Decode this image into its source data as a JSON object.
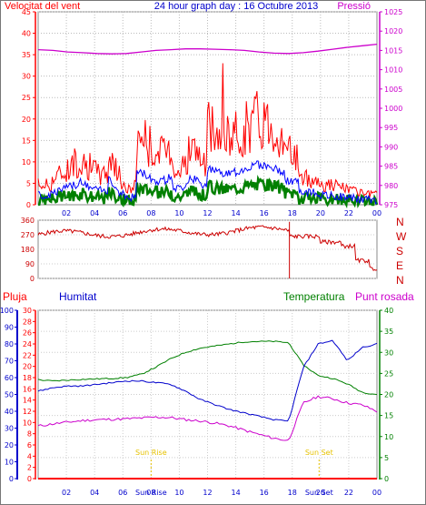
{
  "header": {
    "title": "24 hour graph day : 16 Octubre 2013",
    "left_label": "Velocitat del vent",
    "right_label": "Pressió"
  },
  "colors": {
    "wind_gust": "#ff0000",
    "wind_avg": "#0000ff",
    "wind_low": "#008000",
    "pressure": "#cc00cc",
    "direction": "#cc0000",
    "rain": "#ff0000",
    "humidity": "#0000cc",
    "temperature": "#008000",
    "dewpoint": "#cc00cc",
    "sun": "#e6c200"
  },
  "chart_data": [
    {
      "type": "line",
      "name": "wind_pressure",
      "x_ticks": [
        "02",
        "04",
        "06",
        "08",
        "10",
        "12",
        "14",
        "16",
        "18",
        "20",
        "22",
        "00"
      ],
      "left_axis": {
        "ticks": [
          "0",
          "5",
          "10",
          "15",
          "20",
          "25",
          "30",
          "35",
          "40",
          "45"
        ],
        "ylim": [
          0,
          45
        ]
      },
      "right_axis": {
        "ticks": [
          "975",
          "980",
          "985",
          "990",
          "995",
          "1000",
          "1005",
          "1010",
          "1015",
          "1020",
          "1025"
        ],
        "ylim": [
          975,
          1025
        ]
      },
      "pressure": [
        1015.2,
        1015.0,
        1014.6,
        1014.4,
        1014.2,
        1014.1,
        1014.2,
        1014.6,
        1015.0,
        1015.2,
        1015.4,
        1015.4,
        1015.3,
        1015.2,
        1015.0,
        1014.6,
        1014.3,
        1014.2,
        1014.4,
        1014.8,
        1015.3,
        1015.8,
        1016.2,
        1016.6
      ],
      "gust_peak": 33
    },
    {
      "type": "line",
      "name": "wind_direction",
      "y_ticks": [
        "360",
        "270",
        "180",
        "90",
        "0"
      ],
      "ylim": [
        0,
        360
      ],
      "compass": [
        "N",
        "W",
        "S",
        "E",
        "N"
      ]
    },
    {
      "type": "line",
      "name": "humidity_temperature",
      "x_ticks": [
        "02",
        "04",
        "06",
        "08",
        "10",
        "12",
        "14",
        "16",
        "18",
        "20",
        "22",
        "00"
      ],
      "pluja_axis": {
        "ticks": [
          "0",
          "2",
          "4",
          "6",
          "8",
          "10",
          "12",
          "14",
          "16",
          "18",
          "20",
          "22",
          "24",
          "26",
          "28",
          "30"
        ],
        "ylim": [
          0,
          30
        ]
      },
      "humidity_axis": {
        "ticks": [
          "0",
          "10",
          "20",
          "30",
          "40",
          "50",
          "60",
          "70",
          "80",
          "90",
          "100"
        ],
        "ylim": [
          0,
          100
        ]
      },
      "temperature_axis": {
        "ticks": [
          "0",
          "5",
          "10",
          "15",
          "20",
          "25",
          "30",
          "35",
          "40"
        ],
        "ylim": [
          0,
          40
        ]
      },
      "humidity": [
        52,
        54,
        55,
        55,
        56,
        57,
        58,
        58,
        57,
        56,
        52,
        47,
        44,
        41,
        39,
        37,
        35,
        34,
        66,
        80,
        82,
        70,
        78,
        80
      ],
      "temperature": [
        23.5,
        23.2,
        23.4,
        23.6,
        23.7,
        23.8,
        24.0,
        24.8,
        26.5,
        28.5,
        30.0,
        31.0,
        31.5,
        32.0,
        32.5,
        32.6,
        32.6,
        32.3,
        27.0,
        24.5,
        23.8,
        22.5,
        20.5,
        20.0
      ],
      "dewpoint": [
        12.5,
        13.0,
        13.4,
        13.8,
        14.0,
        14.1,
        14.2,
        14.4,
        14.6,
        14.5,
        14.0,
        13.7,
        13.2,
        12.5,
        11.5,
        10.5,
        9.6,
        9.0,
        18.0,
        19.5,
        19.0,
        18.0,
        17.5,
        16.0
      ],
      "rain": 0,
      "sunrise_label": "Sun Rise",
      "sunset_label": "Sun Set",
      "sunrise_hour": 8,
      "sunset_hour": 19.9
    }
  ],
  "panel3_labels": {
    "rain": "Pluja",
    "humidity": "Humitat",
    "temperature": "Temperatura",
    "dewpoint": "Punt rosada"
  }
}
